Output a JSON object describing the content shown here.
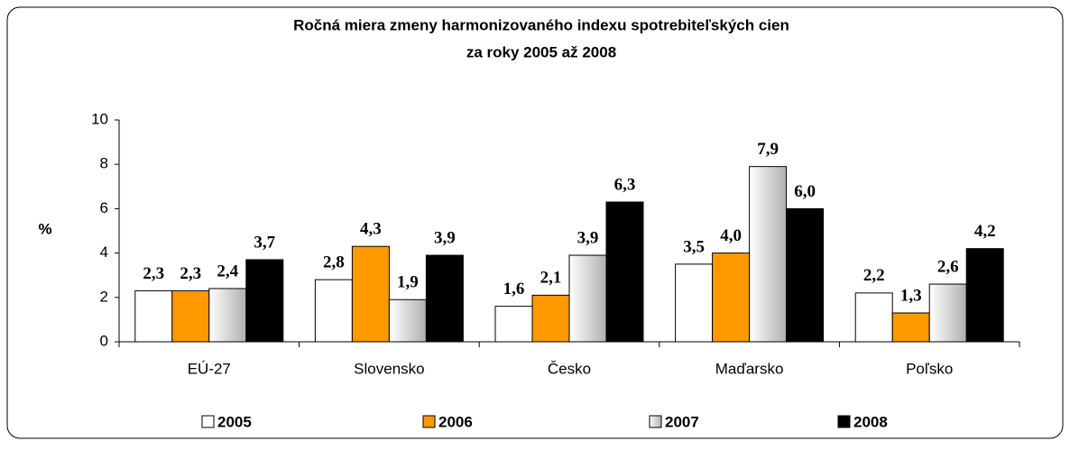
{
  "chart_data": {
    "type": "bar",
    "title": "Ročná miera zmeny harmonizovaného indexu spotrebiteľských cien",
    "subtitle": "za roky 2005 až 2008",
    "y_label": "%",
    "categories": [
      "EÚ-27",
      "Slovensko",
      "Česko",
      "Maďarsko",
      "Poľsko"
    ],
    "series": [
      {
        "name": "2005",
        "color": "#ffffff",
        "values": [
          2.3,
          2.8,
          1.6,
          3.5,
          2.2
        ],
        "value_labels": [
          "2,3",
          "2,8",
          "1,6",
          "3,5",
          "2,2"
        ]
      },
      {
        "name": "2006",
        "color": "#ff9900",
        "values": [
          2.3,
          4.3,
          2.1,
          4.0,
          1.3
        ],
        "value_labels": [
          "2,3",
          "4,3",
          "2,1",
          "4,0",
          "1,3"
        ]
      },
      {
        "name": "2007",
        "color": "#b0b0b0",
        "gradient": true,
        "values": [
          2.4,
          1.9,
          3.9,
          7.9,
          2.6
        ],
        "value_labels": [
          "2,4",
          "1,9",
          "3,9",
          "7,9",
          "2,6"
        ]
      },
      {
        "name": "2008",
        "color": "#000000",
        "values": [
          3.7,
          3.9,
          6.3,
          6.0,
          4.2
        ],
        "value_labels": [
          "3,7",
          "3,9",
          "6,3",
          "6,0",
          "4,2"
        ]
      }
    ],
    "ylim": [
      0,
      10
    ],
    "yticks": [
      0,
      2,
      4,
      6,
      8,
      10
    ],
    "grid": false,
    "legend": "bottom"
  }
}
